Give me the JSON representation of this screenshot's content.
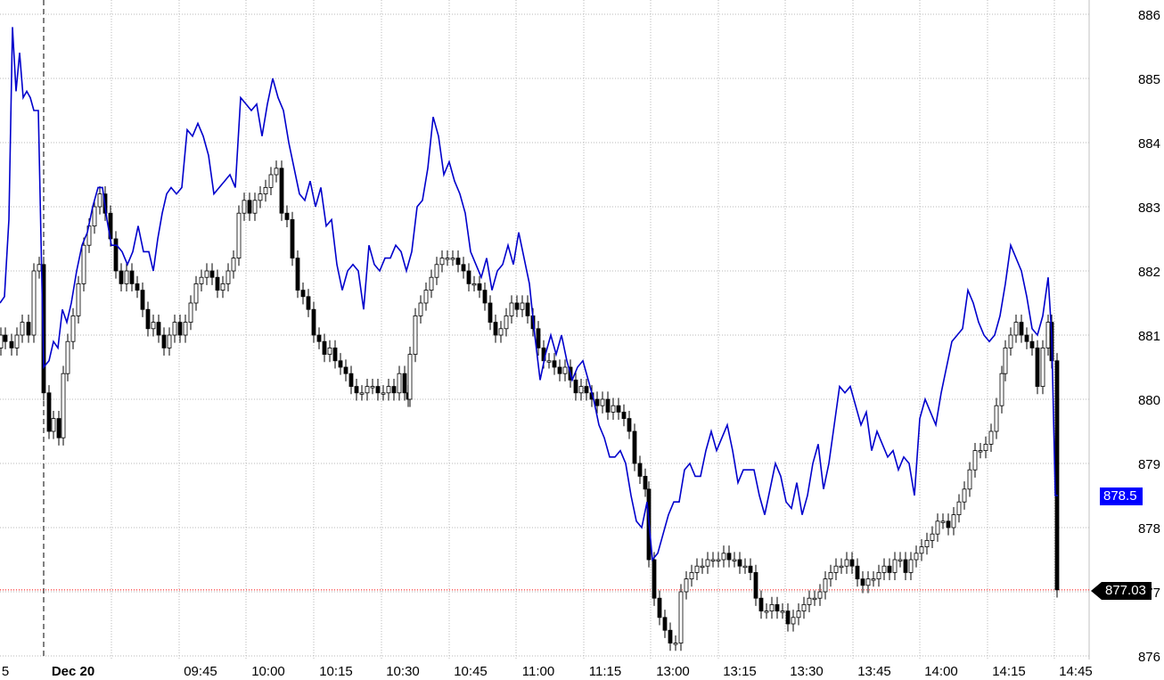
{
  "chart_data": {
    "type": "candlestick",
    "y_axis": {
      "ticks": [
        876,
        877,
        878,
        879,
        880,
        881,
        882,
        883,
        884,
        885,
        886
      ],
      "range": [
        875.9,
        886.2
      ]
    },
    "x_axis": {
      "tick_labels": [
        "5",
        "Dec 20",
        "09:45",
        "10:00",
        "10:15",
        "10:30",
        "10:45",
        "11:00",
        "11:15",
        "13:00",
        "13:15",
        "13:30",
        "13:45",
        "14:00",
        "14:15",
        "14:45"
      ]
    },
    "grid": true,
    "reference_line": {
      "value": 877.03,
      "label": "877.03",
      "color": "#ff0000"
    },
    "series_label": {
      "value": 878.5,
      "label": "878.5",
      "color": "#0000ff"
    },
    "candle_close_path": [
      [
        -1,
        880.8
      ],
      [
        1,
        881
      ],
      [
        6,
        880.9
      ],
      [
        13,
        880.8
      ],
      [
        19,
        881
      ],
      [
        25,
        881.2
      ],
      [
        32,
        881
      ],
      [
        38,
        882
      ],
      [
        44,
        882.1
      ],
      [
        49,
        880.1
      ],
      [
        55,
        879.5
      ],
      [
        60,
        879.7
      ],
      [
        66,
        879.4
      ],
      [
        71,
        880.4
      ],
      [
        76,
        880.9
      ],
      [
        82,
        881.3
      ],
      [
        88,
        881.8
      ],
      [
        94,
        882.4
      ],
      [
        100,
        882.7
      ],
      [
        106,
        883
      ],
      [
        112,
        883.2
      ],
      [
        118,
        882.9
      ],
      [
        124,
        882.5
      ],
      [
        130,
        882
      ],
      [
        136,
        881.8
      ],
      [
        142,
        882
      ],
      [
        148,
        881.8
      ],
      [
        154,
        881.7
      ],
      [
        160,
        881.4
      ],
      [
        166,
        881.1
      ],
      [
        172,
        881.2
      ],
      [
        178,
        881
      ],
      [
        184,
        880.8
      ],
      [
        190,
        881
      ],
      [
        196,
        881.2
      ],
      [
        202,
        881
      ],
      [
        208,
        881.2
      ],
      [
        214,
        881.5
      ],
      [
        220,
        881.8
      ],
      [
        226,
        881.9
      ],
      [
        232,
        882
      ],
      [
        238,
        881.9
      ],
      [
        244,
        881.7
      ],
      [
        250,
        881.8
      ],
      [
        256,
        882
      ],
      [
        262,
        882.2
      ],
      [
        268,
        882.9
      ],
      [
        274,
        883.1
      ],
      [
        280,
        882.9
      ],
      [
        286,
        883.1
      ],
      [
        292,
        883.2
      ],
      [
        298,
        883.3
      ],
      [
        304,
        883.5
      ],
      [
        310,
        883.6
      ],
      [
        316,
        882.9
      ],
      [
        322,
        882.8
      ],
      [
        328,
        882.2
      ],
      [
        334,
        881.7
      ],
      [
        340,
        881.6
      ],
      [
        346,
        881.4
      ],
      [
        352,
        881
      ],
      [
        358,
        880.9
      ],
      [
        364,
        880.7
      ],
      [
        370,
        880.8
      ],
      [
        376,
        880.6
      ],
      [
        382,
        880.5
      ],
      [
        388,
        880.4
      ],
      [
        394,
        880.2
      ],
      [
        400,
        880.1
      ],
      [
        406,
        880.1
      ],
      [
        412,
        880.2
      ],
      [
        418,
        880.2
      ],
      [
        424,
        880.1
      ],
      [
        430,
        880.1
      ],
      [
        436,
        880.2
      ],
      [
        442,
        880.1
      ],
      [
        448,
        880.4
      ],
      [
        454,
        880.1
      ],
      [
        458,
        880
      ],
      [
        460,
        880.7
      ],
      [
        466,
        881.3
      ],
      [
        472,
        881.5
      ],
      [
        478,
        881.7
      ],
      [
        484,
        881.9
      ],
      [
        490,
        882.1
      ],
      [
        496,
        882.2
      ],
      [
        502,
        882.2
      ],
      [
        508,
        882.2
      ],
      [
        514,
        882.1
      ],
      [
        520,
        882
      ],
      [
        526,
        881.8
      ],
      [
        532,
        881.8
      ],
      [
        538,
        881.7
      ],
      [
        544,
        881.5
      ],
      [
        550,
        881.2
      ],
      [
        556,
        881
      ],
      [
        562,
        881.1
      ],
      [
        568,
        881.3
      ],
      [
        574,
        881.5
      ],
      [
        580,
        881.4
      ],
      [
        586,
        881.5
      ],
      [
        592,
        881.3
      ],
      [
        598,
        881.1
      ],
      [
        604,
        880.8
      ],
      [
        610,
        880.6
      ],
      [
        616,
        880.6
      ],
      [
        622,
        880.5
      ],
      [
        628,
        880.4
      ],
      [
        634,
        880.5
      ],
      [
        640,
        880.3
      ],
      [
        646,
        880.1
      ],
      [
        652,
        880.2
      ],
      [
        658,
        880.1
      ],
      [
        664,
        880
      ],
      [
        670,
        879.9
      ],
      [
        676,
        880
      ],
      [
        682,
        879.8
      ],
      [
        688,
        879.9
      ],
      [
        694,
        879.8
      ],
      [
        700,
        879.7
      ],
      [
        706,
        879.5
      ],
      [
        712,
        879
      ],
      [
        718,
        878.8
      ],
      [
        724,
        878.6
      ],
      [
        728,
        877.5
      ],
      [
        734,
        876.9
      ],
      [
        740,
        876.6
      ],
      [
        746,
        876.4
      ],
      [
        752,
        876.2
      ],
      [
        758,
        876.2
      ],
      [
        764,
        877
      ],
      [
        770,
        877.2
      ],
      [
        776,
        877.3
      ],
      [
        782,
        877.4
      ],
      [
        788,
        877.4
      ],
      [
        794,
        877.5
      ],
      [
        800,
        877.5
      ],
      [
        806,
        877.5
      ],
      [
        812,
        877.6
      ],
      [
        818,
        877.5
      ],
      [
        824,
        877.5
      ],
      [
        830,
        877.4
      ],
      [
        836,
        877.4
      ],
      [
        842,
        877.3
      ],
      [
        848,
        876.9
      ],
      [
        854,
        876.7
      ],
      [
        860,
        876.7
      ],
      [
        866,
        876.8
      ],
      [
        872,
        876.7
      ],
      [
        878,
        876.7
      ],
      [
        884,
        876.5
      ],
      [
        890,
        876.6
      ],
      [
        896,
        876.7
      ],
      [
        902,
        876.8
      ],
      [
        908,
        876.9
      ],
      [
        914,
        876.9
      ],
      [
        920,
        877
      ],
      [
        926,
        877.2
      ],
      [
        932,
        877.3
      ],
      [
        938,
        877.4
      ],
      [
        944,
        877.4
      ],
      [
        950,
        877.5
      ],
      [
        956,
        877.4
      ],
      [
        962,
        877.2
      ],
      [
        968,
        877.1
      ],
      [
        974,
        877.2
      ],
      [
        980,
        877.2
      ],
      [
        986,
        877.3
      ],
      [
        992,
        877.4
      ],
      [
        998,
        877.3
      ],
      [
        1004,
        877.5
      ],
      [
        1010,
        877.5
      ],
      [
        1016,
        877.3
      ],
      [
        1022,
        877.5
      ],
      [
        1028,
        877.6
      ],
      [
        1034,
        877.7
      ],
      [
        1040,
        877.8
      ],
      [
        1046,
        877.9
      ],
      [
        1052,
        878.1
      ],
      [
        1058,
        878.1
      ],
      [
        1064,
        878
      ],
      [
        1070,
        878.2
      ],
      [
        1076,
        878.4
      ],
      [
        1082,
        878.6
      ],
      [
        1088,
        878.9
      ],
      [
        1094,
        879.2
      ],
      [
        1100,
        879.2
      ],
      [
        1106,
        879.3
      ],
      [
        1112,
        879.5
      ],
      [
        1118,
        879.9
      ],
      [
        1124,
        880.4
      ],
      [
        1128,
        880.8
      ],
      [
        1134,
        881
      ],
      [
        1140,
        881.2
      ],
      [
        1146,
        881
      ],
      [
        1152,
        880.9
      ],
      [
        1158,
        880.8
      ],
      [
        1164,
        880.2
      ],
      [
        1170,
        880.8
      ],
      [
        1176,
        881.2
      ],
      [
        1180,
        880.6
      ],
      [
        1186,
        877.03
      ]
    ],
    "blue_line": [
      [
        0,
        881.5
      ],
      [
        5,
        881.6
      ],
      [
        10,
        882.8
      ],
      [
        14,
        885.8
      ],
      [
        18,
        884.8
      ],
      [
        22,
        885.4
      ],
      [
        26,
        884.7
      ],
      [
        30,
        884.8
      ],
      [
        34,
        884.7
      ],
      [
        38,
        884.5
      ],
      [
        43,
        884.5
      ],
      [
        49,
        880.5
      ],
      [
        55,
        880.6
      ],
      [
        60,
        880.9
      ],
      [
        65,
        880.8
      ],
      [
        70,
        881.4
      ],
      [
        75,
        881.2
      ],
      [
        80,
        881.5
      ],
      [
        86,
        882
      ],
      [
        92,
        882.4
      ],
      [
        98,
        882.6
      ],
      [
        104,
        883
      ],
      [
        110,
        883.3
      ],
      [
        115,
        883.3
      ],
      [
        120,
        882.8
      ],
      [
        125,
        882.4
      ],
      [
        131,
        882.4
      ],
      [
        137,
        882.3
      ],
      [
        143,
        882.1
      ],
      [
        149,
        882.3
      ],
      [
        155,
        882.7
      ],
      [
        161,
        882.3
      ],
      [
        167,
        882.3
      ],
      [
        172,
        882
      ],
      [
        177,
        882.5
      ],
      [
        182,
        882.9
      ],
      [
        187,
        883.2
      ],
      [
        192,
        883.3
      ],
      [
        198,
        883.2
      ],
      [
        204,
        883.3
      ],
      [
        210,
        884.2
      ],
      [
        216,
        884.1
      ],
      [
        222,
        884.3
      ],
      [
        228,
        884.1
      ],
      [
        234,
        883.8
      ],
      [
        240,
        883.2
      ],
      [
        246,
        883.3
      ],
      [
        252,
        883.4
      ],
      [
        258,
        883.5
      ],
      [
        264,
        883.3
      ],
      [
        270,
        884.7
      ],
      [
        276,
        884.6
      ],
      [
        282,
        884.5
      ],
      [
        288,
        884.6
      ],
      [
        294,
        884.1
      ],
      [
        300,
        884.6
      ],
      [
        306,
        885
      ],
      [
        312,
        884.7
      ],
      [
        318,
        884.5
      ],
      [
        324,
        884
      ],
      [
        330,
        883.6
      ],
      [
        336,
        883.2
      ],
      [
        342,
        883.1
      ],
      [
        348,
        883.4
      ],
      [
        354,
        883
      ],
      [
        360,
        883.3
      ],
      [
        366,
        882.7
      ],
      [
        372,
        882.8
      ],
      [
        378,
        882.1
      ],
      [
        384,
        881.7
      ],
      [
        390,
        882
      ],
      [
        396,
        882.1
      ],
      [
        402,
        882
      ],
      [
        408,
        881.4
      ],
      [
        414,
        882.4
      ],
      [
        420,
        882.1
      ],
      [
        426,
        882
      ],
      [
        432,
        882.2
      ],
      [
        438,
        882.2
      ],
      [
        444,
        882.4
      ],
      [
        450,
        882.3
      ],
      [
        456,
        882
      ],
      [
        462,
        882.3
      ],
      [
        468,
        883
      ],
      [
        474,
        883.1
      ],
      [
        480,
        883.6
      ],
      [
        486,
        884.4
      ],
      [
        492,
        884.1
      ],
      [
        498,
        883.5
      ],
      [
        504,
        883.7
      ],
      [
        510,
        883.4
      ],
      [
        516,
        883.2
      ],
      [
        522,
        882.9
      ],
      [
        528,
        882.3
      ],
      [
        534,
        882.1
      ],
      [
        540,
        881.9
      ],
      [
        546,
        882.2
      ],
      [
        552,
        881.7
      ],
      [
        558,
        882
      ],
      [
        564,
        882.1
      ],
      [
        570,
        882.4
      ],
      [
        576,
        882.1
      ],
      [
        582,
        882.6
      ],
      [
        588,
        882.2
      ],
      [
        594,
        881.8
      ],
      [
        600,
        881
      ],
      [
        606,
        880.3
      ],
      [
        612,
        880.7
      ],
      [
        618,
        881
      ],
      [
        624,
        880.7
      ],
      [
        630,
        881
      ],
      [
        636,
        880.6
      ],
      [
        642,
        880.3
      ],
      [
        648,
        880.5
      ],
      [
        654,
        880.6
      ],
      [
        660,
        880.3
      ],
      [
        666,
        880
      ],
      [
        672,
        879.6
      ],
      [
        678,
        879.4
      ],
      [
        684,
        879.1
      ],
      [
        690,
        879.1
      ],
      [
        696,
        879.2
      ],
      [
        702,
        879
      ],
      [
        708,
        878.5
      ],
      [
        714,
        878.1
      ],
      [
        720,
        878
      ],
      [
        726,
        878.4
      ],
      [
        732,
        877.5
      ],
      [
        738,
        877.6
      ],
      [
        744,
        877.9
      ],
      [
        750,
        878.2
      ],
      [
        756,
        878.4
      ],
      [
        762,
        878.4
      ],
      [
        768,
        878.9
      ],
      [
        774,
        879
      ],
      [
        780,
        878.8
      ],
      [
        786,
        878.8
      ],
      [
        792,
        879.2
      ],
      [
        798,
        879.5
      ],
      [
        804,
        879.2
      ],
      [
        810,
        879.4
      ],
      [
        816,
        879.6
      ],
      [
        822,
        879.2
      ],
      [
        828,
        878.7
      ],
      [
        834,
        878.9
      ],
      [
        840,
        878.9
      ],
      [
        846,
        878.9
      ],
      [
        852,
        878.5
      ],
      [
        858,
        878.2
      ],
      [
        864,
        878.6
      ],
      [
        870,
        879
      ],
      [
        876,
        878.8
      ],
      [
        882,
        878.4
      ],
      [
        888,
        878.3
      ],
      [
        894,
        878.7
      ],
      [
        900,
        878.2
      ],
      [
        906,
        878.5
      ],
      [
        912,
        879
      ],
      [
        918,
        879.3
      ],
      [
        924,
        878.6
      ],
      [
        930,
        879
      ],
      [
        936,
        879.6
      ],
      [
        942,
        880.2
      ],
      [
        948,
        880.1
      ],
      [
        954,
        880.2
      ],
      [
        960,
        879.9
      ],
      [
        966,
        879.6
      ],
      [
        972,
        879.8
      ],
      [
        978,
        879.2
      ],
      [
        984,
        879.5
      ],
      [
        990,
        879.3
      ],
      [
        996,
        879.1
      ],
      [
        1002,
        879.2
      ],
      [
        1008,
        878.9
      ],
      [
        1014,
        879.1
      ],
      [
        1020,
        879
      ],
      [
        1026,
        878.5
      ],
      [
        1032,
        879.7
      ],
      [
        1038,
        880
      ],
      [
        1044,
        879.8
      ],
      [
        1050,
        879.6
      ],
      [
        1056,
        880.1
      ],
      [
        1062,
        880.5
      ],
      [
        1068,
        880.9
      ],
      [
        1074,
        881
      ],
      [
        1080,
        881.1
      ],
      [
        1086,
        881.7
      ],
      [
        1092,
        881.5
      ],
      [
        1098,
        881.2
      ],
      [
        1104,
        881
      ],
      [
        1110,
        880.9
      ],
      [
        1116,
        881
      ],
      [
        1122,
        881.3
      ],
      [
        1128,
        881.8
      ],
      [
        1134,
        882.4
      ],
      [
        1140,
        882.2
      ],
      [
        1146,
        882
      ],
      [
        1152,
        881.6
      ],
      [
        1158,
        881.1
      ],
      [
        1164,
        881
      ],
      [
        1170,
        881.3
      ],
      [
        1176,
        881.9
      ],
      [
        1180,
        881
      ],
      [
        1184,
        878.5
      ],
      [
        1187,
        878.5
      ]
    ]
  },
  "labels": {
    "blue_value": "878.5",
    "last_price": "877.03"
  }
}
